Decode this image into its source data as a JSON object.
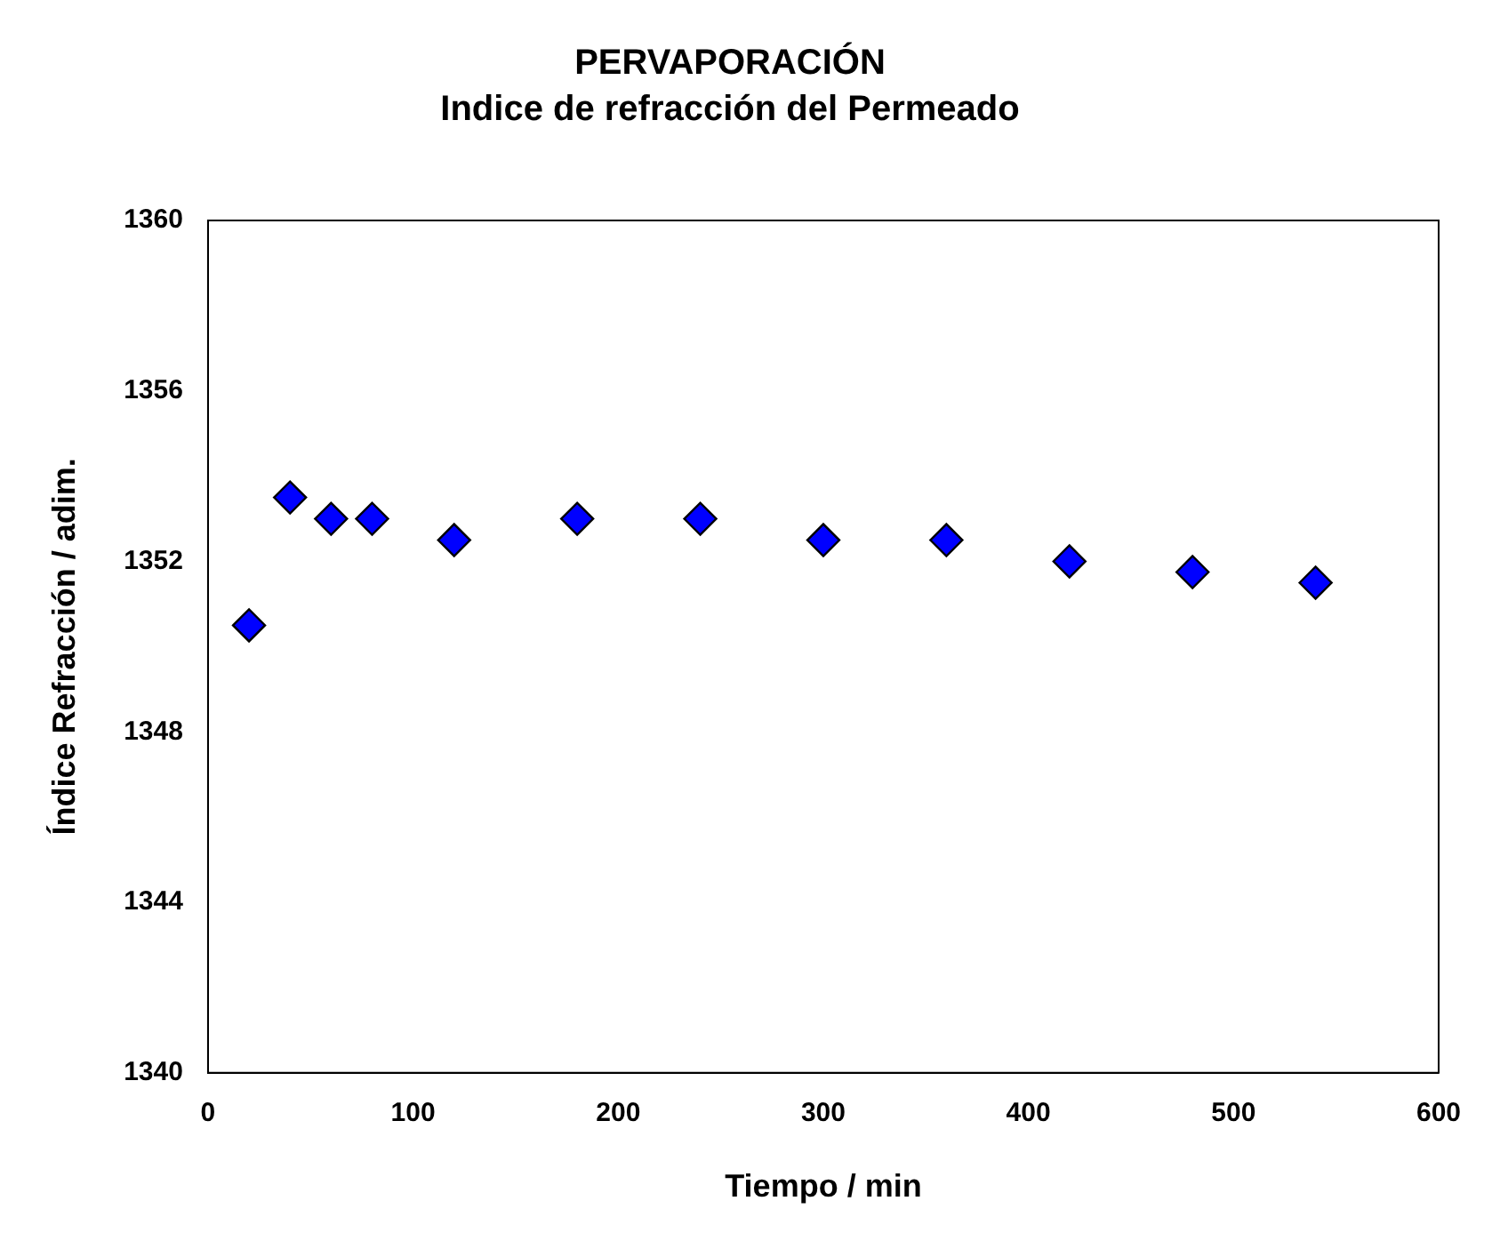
{
  "chart_data": {
    "type": "scatter",
    "title": "PERVAPORACIÓN",
    "subtitle": "Indice de refracción del Permeado",
    "xlabel": "Tiempo / min",
    "ylabel": "Índice Refracción / adim.",
    "x": [
      20,
      40,
      60,
      80,
      120,
      180,
      240,
      300,
      360,
      420,
      480,
      540
    ],
    "series": [
      {
        "color": "#0000ff",
        "values": [
          1350.5,
          1353.5,
          1353,
          1353,
          1352.5,
          1353,
          1353,
          1352.5,
          1352.5,
          1352,
          1351.75,
          1351.5
        ]
      }
    ],
    "xlim": [
      0,
      600
    ],
    "xticks": [
      0,
      100,
      200,
      300,
      400,
      500,
      600
    ],
    "ylim": [
      1340,
      1360
    ],
    "yticks": [
      1340,
      1344,
      1348,
      1352,
      1356,
      1360
    ],
    "grid": false,
    "legend": false,
    "marker": "diamond"
  }
}
